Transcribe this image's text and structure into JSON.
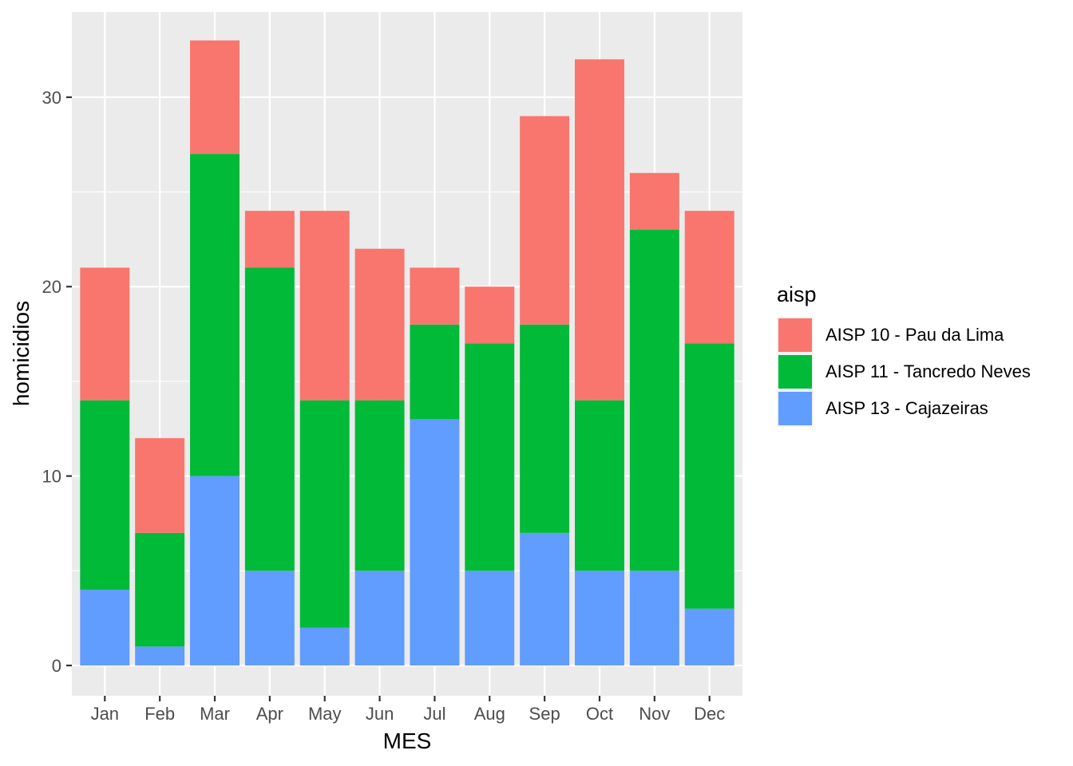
{
  "chart_data": {
    "type": "bar",
    "stacked": true,
    "title": "",
    "xlabel": "MES",
    "ylabel": "homicidios",
    "categories": [
      "Jan",
      "Feb",
      "Mar",
      "Apr",
      "May",
      "Jun",
      "Jul",
      "Aug",
      "Sep",
      "Oct",
      "Nov",
      "Dec"
    ],
    "ylim": [
      -1.6,
      34.5
    ],
    "yticks": [
      0,
      10,
      20,
      30
    ],
    "ytick_labels": [
      "0",
      "10",
      "20",
      "30"
    ],
    "grid": true,
    "legend_title": "aisp",
    "legend_position": "right",
    "series": [
      {
        "name": "AISP 13 - Cajazeiras",
        "color": "#619CFF",
        "values": [
          4,
          1,
          10,
          5,
          2,
          5,
          13,
          5,
          7,
          5,
          5,
          3
        ]
      },
      {
        "name": "AISP 11 - Tancredo Neves",
        "color": "#00BA38",
        "values": [
          10,
          6,
          17,
          16,
          12,
          9,
          5,
          12,
          11,
          9,
          18,
          14
        ]
      },
      {
        "name": "AISP 10 - Pau da Lima",
        "color": "#F8766D",
        "values": [
          7,
          5,
          6,
          3,
          10,
          8,
          3,
          3,
          11,
          18,
          3,
          7
        ]
      }
    ],
    "legend_order": [
      "AISP 10 - Pau da Lima",
      "AISP 11 - Tancredo Neves",
      "AISP 13 - Cajazeiras"
    ]
  },
  "colors": {
    "panel_background": "#EBEBEB",
    "grid_major": "#FFFFFF",
    "tick_mark": "#333333"
  }
}
